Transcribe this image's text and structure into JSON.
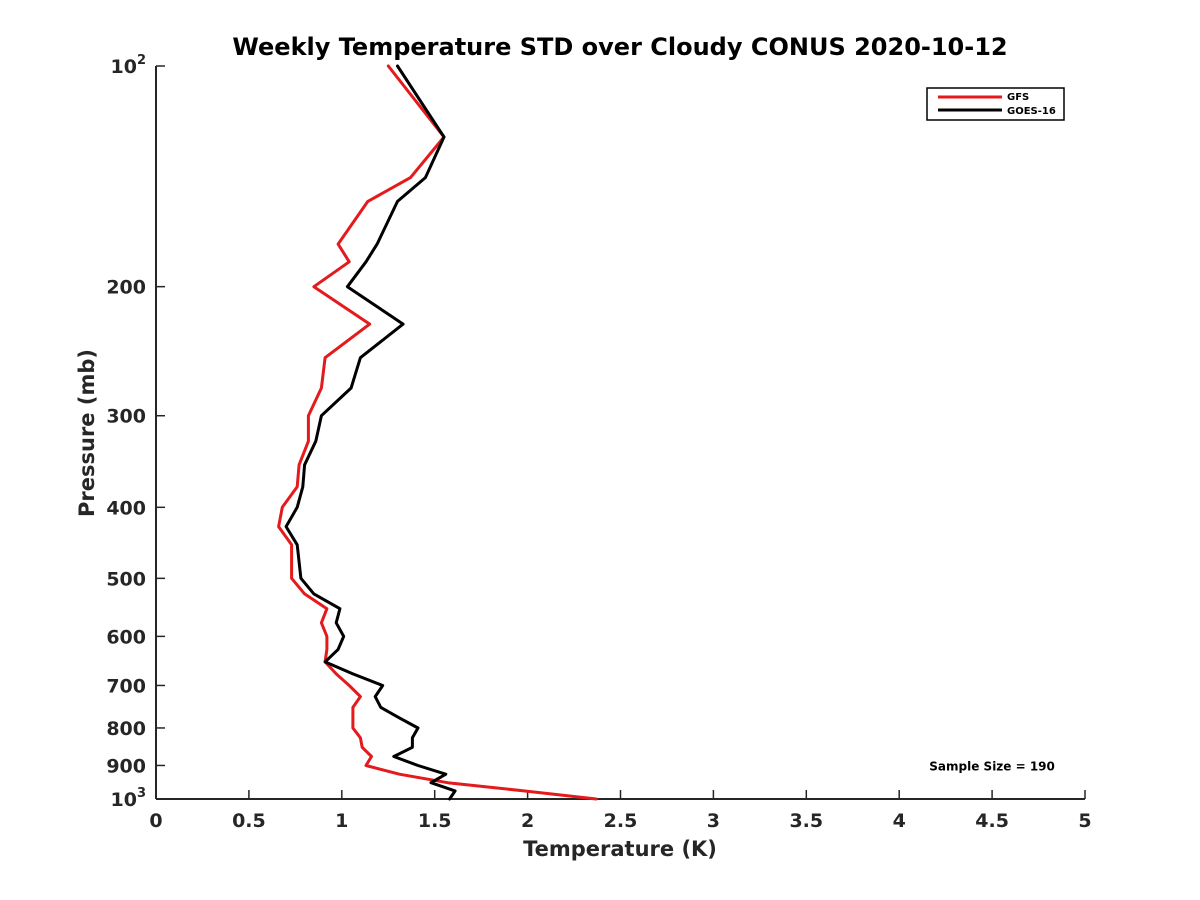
{
  "chart_data": {
    "type": "line",
    "title": "Weekly Temperature STD over Cloudy CONUS 2020-10-12",
    "xlabel": "Temperature (K)",
    "ylabel": "Pressure (mb)",
    "xlim": [
      0,
      5
    ],
    "ylim": [
      100,
      1000
    ],
    "y_scale": "log",
    "y_reversed": true,
    "grid": false,
    "legend_position": "top-right",
    "x_ticks": [
      {
        "value": 0,
        "label": "0"
      },
      {
        "value": 0.5,
        "label": "0.5"
      },
      {
        "value": 1,
        "label": "1"
      },
      {
        "value": 1.5,
        "label": "1.5"
      },
      {
        "value": 2,
        "label": "2"
      },
      {
        "value": 2.5,
        "label": "2.5"
      },
      {
        "value": 3,
        "label": "3"
      },
      {
        "value": 3.5,
        "label": "3.5"
      },
      {
        "value": 4,
        "label": "4"
      },
      {
        "value": 4.5,
        "label": "4.5"
      },
      {
        "value": 5,
        "label": "5"
      }
    ],
    "y_ticks": [
      {
        "value": 100,
        "base": "10",
        "exp": "2"
      },
      {
        "value": 200,
        "label": "200"
      },
      {
        "value": 300,
        "label": "300"
      },
      {
        "value": 400,
        "label": "400"
      },
      {
        "value": 500,
        "label": "500"
      },
      {
        "value": 600,
        "label": "600"
      },
      {
        "value": 700,
        "label": "700"
      },
      {
        "value": 800,
        "label": "800"
      },
      {
        "value": 900,
        "label": "900"
      },
      {
        "value": 1000,
        "base": "10",
        "exp": "3"
      }
    ],
    "series": [
      {
        "name": "GFS",
        "color": "#e41a1c",
        "points": [
          [
            1.25,
            100
          ],
          [
            1.55,
            125
          ],
          [
            1.37,
            142
          ],
          [
            1.14,
            153
          ],
          [
            0.98,
            175
          ],
          [
            1.04,
            185
          ],
          [
            0.85,
            200
          ],
          [
            1.15,
            225
          ],
          [
            0.91,
            250
          ],
          [
            0.89,
            275
          ],
          [
            0.82,
            300
          ],
          [
            0.82,
            325
          ],
          [
            0.77,
            350
          ],
          [
            0.76,
            375
          ],
          [
            0.68,
            400
          ],
          [
            0.66,
            425
          ],
          [
            0.73,
            450
          ],
          [
            0.73,
            475
          ],
          [
            0.73,
            500
          ],
          [
            0.8,
            525
          ],
          [
            0.92,
            550
          ],
          [
            0.89,
            575
          ],
          [
            0.92,
            600
          ],
          [
            0.92,
            625
          ],
          [
            0.91,
            650
          ],
          [
            0.97,
            675
          ],
          [
            1.04,
            700
          ],
          [
            1.1,
            725
          ],
          [
            1.06,
            750
          ],
          [
            1.06,
            775
          ],
          [
            1.06,
            800
          ],
          [
            1.1,
            825
          ],
          [
            1.11,
            850
          ],
          [
            1.16,
            875
          ],
          [
            1.13,
            900
          ],
          [
            1.31,
            925
          ],
          [
            1.57,
            950
          ],
          [
            1.98,
            975
          ],
          [
            2.37,
            1000
          ]
        ]
      },
      {
        "name": "GOES-16",
        "color": "#000000",
        "points": [
          [
            1.3,
            100
          ],
          [
            1.55,
            125
          ],
          [
            1.45,
            142
          ],
          [
            1.3,
            153
          ],
          [
            1.19,
            175
          ],
          [
            1.13,
            185
          ],
          [
            1.03,
            200
          ],
          [
            1.33,
            225
          ],
          [
            1.1,
            250
          ],
          [
            1.05,
            275
          ],
          [
            0.89,
            300
          ],
          [
            0.86,
            325
          ],
          [
            0.8,
            350
          ],
          [
            0.79,
            375
          ],
          [
            0.76,
            400
          ],
          [
            0.7,
            425
          ],
          [
            0.76,
            450
          ],
          [
            0.77,
            475
          ],
          [
            0.78,
            500
          ],
          [
            0.85,
            525
          ],
          [
            0.99,
            550
          ],
          [
            0.97,
            575
          ],
          [
            1.01,
            600
          ],
          [
            0.98,
            625
          ],
          [
            0.91,
            650
          ],
          [
            1.06,
            675
          ],
          [
            1.22,
            700
          ],
          [
            1.18,
            725
          ],
          [
            1.21,
            750
          ],
          [
            1.31,
            775
          ],
          [
            1.41,
            800
          ],
          [
            1.38,
            825
          ],
          [
            1.38,
            850
          ],
          [
            1.28,
            875
          ],
          [
            1.41,
            900
          ],
          [
            1.56,
            925
          ],
          [
            1.48,
            950
          ],
          [
            1.61,
            975
          ],
          [
            1.58,
            1000
          ]
        ]
      }
    ],
    "annotations": [
      {
        "text": "Sample Size = 190",
        "x": 4.5,
        "y": 900
      }
    ]
  }
}
